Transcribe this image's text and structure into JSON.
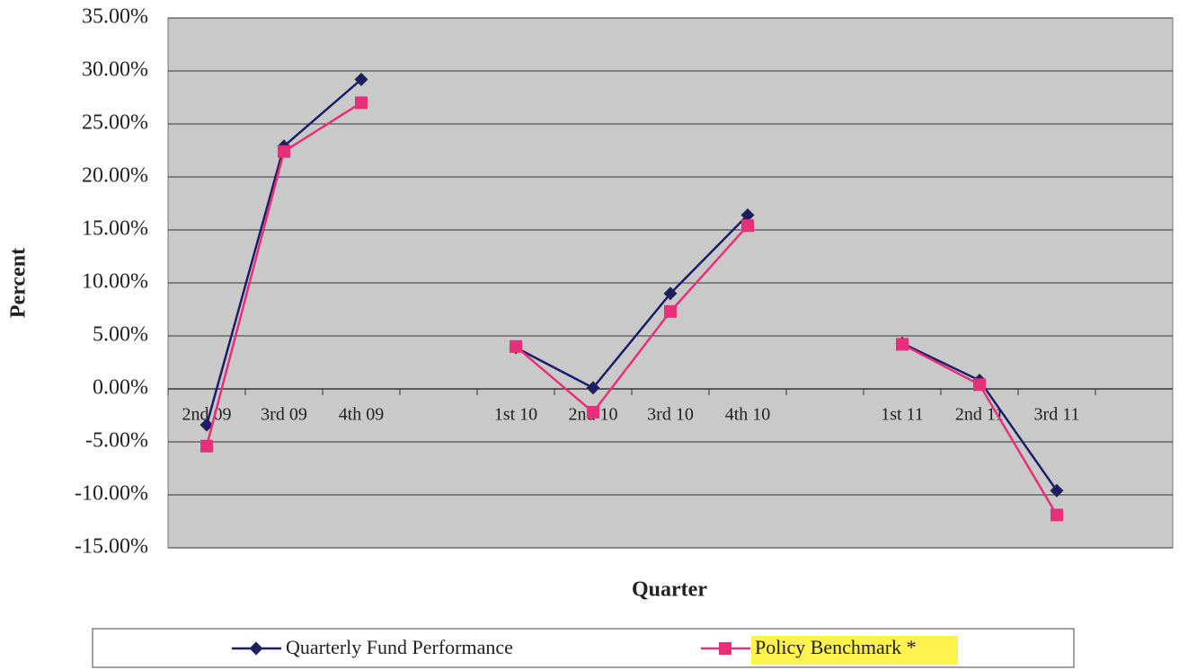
{
  "chart_data": {
    "type": "line",
    "x_label": "Quarter",
    "y_label": "Percent",
    "categories": [
      "2nd 09",
      "3rd 09",
      "4th 09",
      null,
      "1st 10",
      "2nd 10",
      "3rd 10",
      "4th 10",
      null,
      "1st 11",
      "2nd 11",
      "3rd 11",
      null
    ],
    "series": [
      {
        "name": "Quarterly Fund Performance",
        "color": "#1c1c6b",
        "marker": "diamond",
        "values": [
          -3.4,
          22.9,
          29.2,
          null,
          3.9,
          0.1,
          9.0,
          16.4,
          null,
          4.3,
          0.8,
          -9.6,
          null
        ]
      },
      {
        "name": "Policy Benchmark *",
        "color": "#e8307a",
        "marker": "square",
        "values": [
          -5.4,
          22.4,
          27.0,
          null,
          4.0,
          -2.2,
          7.3,
          15.4,
          null,
          4.2,
          0.4,
          -11.9,
          null
        ]
      }
    ],
    "ylim": [
      -15,
      35
    ],
    "yticks": [
      {
        "value": -15,
        "label": "-15.00%"
      },
      {
        "value": -10,
        "label": "-10.00%"
      },
      {
        "value": -5,
        "label": "-5.00%"
      },
      {
        "value": 0,
        "label": "0.00%"
      },
      {
        "value": 5,
        "label": "5.00%"
      },
      {
        "value": 10,
        "label": "10.00%"
      },
      {
        "value": 15,
        "label": "15.00%"
      },
      {
        "value": 20,
        "label": "20.00%"
      },
      {
        "value": 25,
        "label": "25.00%"
      },
      {
        "value": 30,
        "label": "30.00%"
      },
      {
        "value": 35,
        "label": "35.00%"
      }
    ],
    "grid": true,
    "legend": "bottom"
  }
}
